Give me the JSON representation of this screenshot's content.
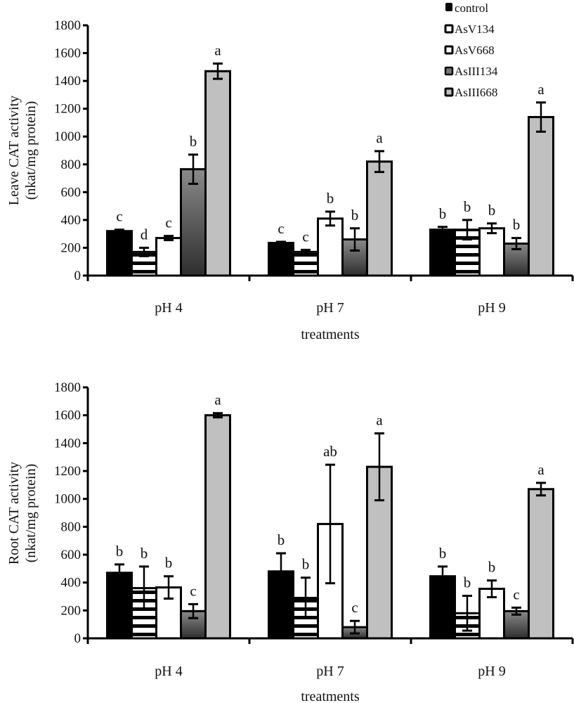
{
  "legend": {
    "items": [
      {
        "label": "control",
        "style": "black"
      },
      {
        "label": "AsV134",
        "style": "hstripes"
      },
      {
        "label": "AsV668",
        "style": "white"
      },
      {
        "label": "AsIII134",
        "style": "darkgradient"
      },
      {
        "label": "AsIII668",
        "style": "lightgray"
      }
    ]
  },
  "colors": {
    "control": "#000000",
    "AsV134_stripe": "#000000",
    "AsV668": "#ffffff",
    "AsIII134_top": "#8a8a8a",
    "AsIII134_bottom": "#2e2e2e",
    "AsIII668": "#c0c0c0"
  },
  "chart_data": [
    {
      "type": "bar",
      "title": "",
      "ylabel_line1": "Leave CAT activity",
      "ylabel_line2": "(nkat/mg protein)",
      "xlabel": "treatments",
      "categories": [
        "pH 4",
        "pH 7",
        "pH 9"
      ],
      "ylim": [
        0,
        1800
      ],
      "yticks": [
        0,
        200,
        400,
        600,
        800,
        1000,
        1200,
        1400,
        1600,
        1800
      ],
      "grid": false,
      "legend_position": "top-right",
      "series": [
        {
          "name": "control",
          "values": [
            320,
            235,
            330
          ],
          "errors": [
            10,
            8,
            20
          ],
          "letters": [
            "c",
            "c",
            "b"
          ]
        },
        {
          "name": "AsV134",
          "values": [
            170,
            170,
            330
          ],
          "errors": [
            30,
            15,
            70
          ],
          "letters": [
            "d",
            "c",
            "b"
          ]
        },
        {
          "name": "AsV668",
          "values": [
            270,
            410,
            340
          ],
          "errors": [
            15,
            50,
            35
          ],
          "letters": [
            "c",
            "b",
            "b"
          ]
        },
        {
          "name": "AsIII134",
          "values": [
            765,
            260,
            230
          ],
          "errors": [
            105,
            80,
            40
          ],
          "letters": [
            "b",
            "b",
            "b"
          ]
        },
        {
          "name": "AsIII668",
          "values": [
            1470,
            820,
            1140
          ],
          "errors": [
            55,
            75,
            105
          ],
          "letters": [
            "a",
            "a",
            "a"
          ]
        }
      ]
    },
    {
      "type": "bar",
      "title": "",
      "ylabel_line1": "Root  CAT activity",
      "ylabel_line2": "(nkat/mg protein)",
      "xlabel": "treatments",
      "categories": [
        "pH 4",
        "pH 7",
        "pH 9"
      ],
      "ylim": [
        0,
        1800
      ],
      "yticks": [
        0,
        200,
        400,
        600,
        800,
        1000,
        1200,
        1400,
        1600,
        1800
      ],
      "grid": false,
      "legend_position": "none",
      "series": [
        {
          "name": "control",
          "values": [
            470,
            480,
            445
          ],
          "errors": [
            60,
            130,
            70
          ],
          "letters": [
            "b",
            "b",
            "b"
          ]
        },
        {
          "name": "AsV134",
          "values": [
            360,
            290,
            180
          ],
          "errors": [
            155,
            145,
            125
          ],
          "letters": [
            "b",
            "b",
            "b"
          ]
        },
        {
          "name": "AsV668",
          "values": [
            365,
            820,
            355
          ],
          "errors": [
            80,
            425,
            60
          ],
          "letters": [
            "b",
            "ab",
            "b"
          ]
        },
        {
          "name": "AsIII134",
          "values": [
            195,
            80,
            195
          ],
          "errors": [
            50,
            45,
            25
          ],
          "letters": [
            "c",
            "c",
            "c"
          ]
        },
        {
          "name": "AsIII668",
          "values": [
            1600,
            1230,
            1070
          ],
          "errors": [
            15,
            240,
            45
          ],
          "letters": [
            "a",
            "a",
            "a"
          ]
        }
      ]
    }
  ]
}
